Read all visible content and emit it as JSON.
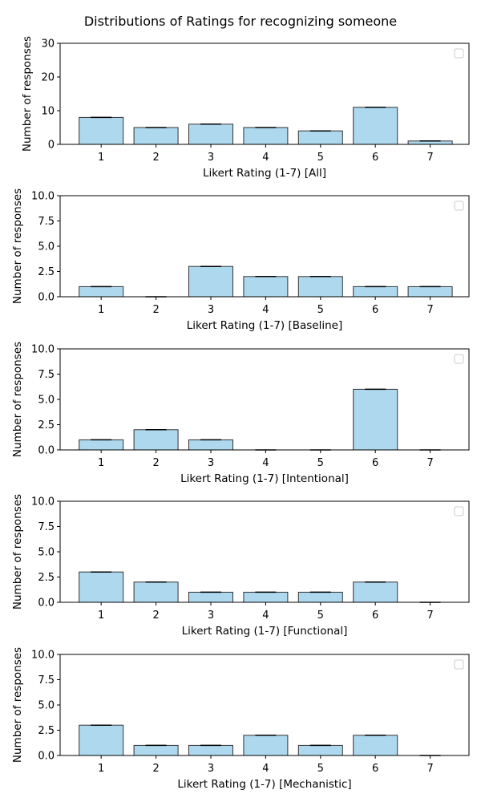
{
  "figure": {
    "title": "Distributions of Ratings for recognizing someone"
  },
  "chart_data": [
    {
      "type": "bar",
      "categories": [
        "1",
        "2",
        "3",
        "4",
        "5",
        "6",
        "7"
      ],
      "values": [
        8,
        5,
        6,
        5,
        4,
        11,
        1
      ],
      "xlabel": "Likert Rating (1-7) [All]",
      "ylabel": "Number of responses",
      "ylim": [
        0,
        30
      ],
      "yticks": [
        "0",
        "10",
        "20",
        "30"
      ],
      "yticks_values": [
        0,
        10,
        20,
        30
      ],
      "bar_color": "#add8ee",
      "edge_color": "#333333",
      "legend": "top-right (empty)"
    },
    {
      "type": "bar",
      "categories": [
        "1",
        "2",
        "3",
        "4",
        "5",
        "6",
        "7"
      ],
      "values": [
        1,
        0,
        3,
        2,
        2,
        1,
        1
      ],
      "xlabel": "Likert Rating (1-7) [Baseline]",
      "ylabel": "Number of responses",
      "ylim": [
        0,
        10
      ],
      "yticks": [
        "0.0",
        "2.5",
        "5.0",
        "7.5",
        "10.0"
      ],
      "yticks_values": [
        0,
        2.5,
        5,
        7.5,
        10
      ],
      "bar_color": "#add8ee",
      "edge_color": "#333333",
      "legend": "top-right (empty)"
    },
    {
      "type": "bar",
      "categories": [
        "1",
        "2",
        "3",
        "4",
        "5",
        "6",
        "7"
      ],
      "values": [
        1,
        2,
        1,
        0,
        0,
        6,
        0
      ],
      "xlabel": "Likert Rating (1-7) [Intentional]",
      "ylabel": "Number of responses",
      "ylim": [
        0,
        10
      ],
      "yticks": [
        "0.0",
        "2.5",
        "5.0",
        "7.5",
        "10.0"
      ],
      "yticks_values": [
        0,
        2.5,
        5,
        7.5,
        10
      ],
      "bar_color": "#add8ee",
      "edge_color": "#333333",
      "legend": "top-right (empty)"
    },
    {
      "type": "bar",
      "categories": [
        "1",
        "2",
        "3",
        "4",
        "5",
        "6",
        "7"
      ],
      "values": [
        3,
        2,
        1,
        1,
        1,
        2,
        0
      ],
      "xlabel": "Likert Rating (1-7) [Functional]",
      "ylabel": "Number of responses",
      "ylim": [
        0,
        10
      ],
      "yticks": [
        "0.0",
        "2.5",
        "5.0",
        "7.5",
        "10.0"
      ],
      "yticks_values": [
        0,
        2.5,
        5,
        7.5,
        10
      ],
      "bar_color": "#add8ee",
      "edge_color": "#333333",
      "legend": "top-right (empty)"
    },
    {
      "type": "bar",
      "categories": [
        "1",
        "2",
        "3",
        "4",
        "5",
        "6",
        "7"
      ],
      "values": [
        3,
        1,
        1,
        2,
        1,
        2,
        0
      ],
      "xlabel": "Likert Rating (1-7) [Mechanistic]",
      "ylabel": "Number of responses",
      "ylim": [
        0,
        10
      ],
      "yticks": [
        "0.0",
        "2.5",
        "5.0",
        "7.5",
        "10.0"
      ],
      "yticks_values": [
        0,
        2.5,
        5,
        7.5,
        10
      ],
      "bar_color": "#add8ee",
      "edge_color": "#333333",
      "legend": "top-right (empty)"
    }
  ]
}
